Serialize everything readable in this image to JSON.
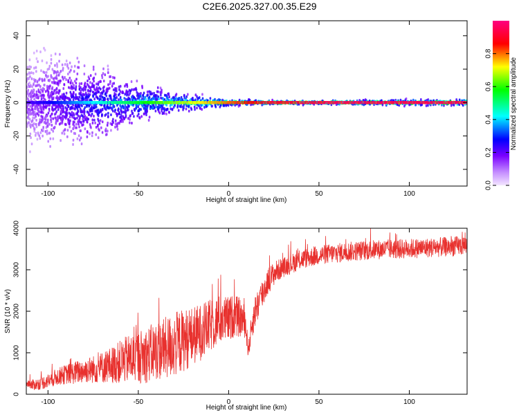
{
  "title": "C2E6.2025.327.00.35.E29",
  "chart_data": [
    {
      "type": "heatmap",
      "name": "spectrogram",
      "xlabel": "Height of straight line (km)",
      "ylabel": "Frequency (Hz)",
      "xlim": [
        -112,
        132
      ],
      "ylim": [
        -50,
        49
      ],
      "x_ticks": [
        -100,
        -50,
        0,
        50,
        100
      ],
      "x_tick_labels": [
        "-100",
        "-50",
        "0",
        "50",
        "100"
      ],
      "y_ticks": [
        -40,
        -20,
        0,
        20,
        40
      ],
      "y_tick_labels": [
        "-40",
        "-20",
        "0",
        "20",
        "40"
      ],
      "colorbar": {
        "label": "Normalized spectral amplitude",
        "range": [
          0,
          1
        ],
        "ticks": [
          0.0,
          0.2,
          0.4,
          0.6,
          0.8
        ],
        "tick_labels": [
          "0.0",
          "0.2",
          "0.4",
          "0.6",
          "0.8"
        ],
        "colors": [
          "#f3e6ff",
          "#7a00ff",
          "#0000ff",
          "#00ffff",
          "#00ff00",
          "#ffff00",
          "#ff0000",
          "#ff0080"
        ]
      },
      "dominant_frequency_hz": 0,
      "description_points": [
        {
          "x": -110,
          "spread_hz": 49,
          "amplitude": 0.15
        },
        {
          "x": -95,
          "spread_hz": 45,
          "amplitude": 0.25
        },
        {
          "x": -80,
          "spread_hz": 40,
          "amplitude": 0.35
        },
        {
          "x": -60,
          "spread_hz": 25,
          "amplitude": 0.45
        },
        {
          "x": -40,
          "spread_hz": 15,
          "amplitude": 0.55
        },
        {
          "x": -20,
          "spread_hz": 8,
          "amplitude": 0.65
        },
        {
          "x": 0,
          "spread_hz": 4,
          "amplitude": 0.75
        },
        {
          "x": 20,
          "spread_hz": 2,
          "amplitude": 0.85
        },
        {
          "x": 60,
          "spread_hz": 2,
          "amplitude": 0.9
        },
        {
          "x": 100,
          "spread_hz": 3,
          "amplitude": 0.9
        },
        {
          "x": 130,
          "spread_hz": 3,
          "amplitude": 0.9
        }
      ]
    },
    {
      "type": "line",
      "name": "snr",
      "xlabel": "Height of straight line (km)",
      "ylabel": "SNR (10 * v/v)",
      "xlim": [
        -112,
        132
      ],
      "ylim": [
        0,
        4000
      ],
      "x_ticks": [
        -100,
        -50,
        0,
        50,
        100
      ],
      "x_tick_labels": [
        "-100",
        "-50",
        "0",
        "50",
        "100"
      ],
      "y_ticks": [
        0,
        1000,
        2000,
        3000,
        4000
      ],
      "y_tick_labels": [
        "0",
        "1000",
        "2000",
        "3000",
        "4000"
      ],
      "series": [
        {
          "name": "SNR",
          "color": "#e8312e",
          "x": [
            -112,
            -105,
            -100,
            -95,
            -90,
            -85,
            -80,
            -75,
            -70,
            -65,
            -60,
            -55,
            -50,
            -45,
            -40,
            -35,
            -30,
            -25,
            -20,
            -15,
            -10,
            -5,
            0,
            3,
            6,
            9,
            11,
            13,
            15,
            18,
            22,
            26,
            30,
            35,
            40,
            45,
            50,
            55,
            60,
            65,
            70,
            75,
            80,
            85,
            90,
            95,
            100,
            105,
            110,
            115,
            120,
            125,
            132
          ],
          "y": [
            200,
            250,
            320,
            420,
            480,
            520,
            570,
            600,
            650,
            700,
            780,
            850,
            900,
            950,
            1050,
            1100,
            1200,
            1300,
            1400,
            1500,
            1650,
            1800,
            1800,
            1900,
            1850,
            1750,
            1050,
            1700,
            2050,
            2350,
            2750,
            2950,
            3050,
            3150,
            3250,
            3300,
            3350,
            3380,
            3400,
            3430,
            3450,
            3460,
            3480,
            3490,
            3500,
            3500,
            3510,
            3520,
            3530,
            3540,
            3550,
            3560,
            3600
          ],
          "noise": [
            150,
            180,
            220,
            260,
            300,
            350,
            380,
            420,
            480,
            550,
            650,
            750,
            800,
            850,
            900,
            950,
            1000,
            950,
            900,
            850,
            800,
            750,
            700,
            650,
            600,
            500,
            250,
            450,
            500,
            500,
            400,
            350,
            300,
            300,
            300,
            300,
            300,
            300,
            300,
            300,
            300,
            300,
            300,
            300,
            300,
            300,
            300,
            300,
            300,
            300,
            300,
            300,
            300
          ]
        }
      ]
    }
  ]
}
